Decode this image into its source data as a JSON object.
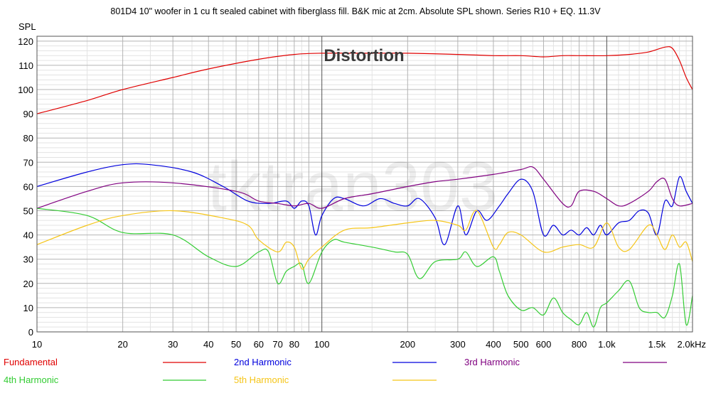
{
  "chart_data": {
    "type": "line",
    "title": "801D4 10\" woofer in 1 cu ft sealed cabinet with fiberglass fill. B&K mic at 2cm. Absolute SPL shown. Series R10 + EQ. 11.3V",
    "annotation": "Distortion",
    "watermark": "tktran303",
    "xlabel": "",
    "ylabel": "SPL",
    "x_scale": "log",
    "xlim": [
      10,
      2000
    ],
    "ylim": [
      0,
      122
    ],
    "grid": true,
    "legend_placement": "bottom",
    "y_ticks": [
      0,
      10,
      20,
      30,
      40,
      50,
      60,
      70,
      80,
      90,
      100,
      110,
      120
    ],
    "x_ticks": [
      {
        "value": 10,
        "label": "10"
      },
      {
        "value": 20,
        "label": "20"
      },
      {
        "value": 30,
        "label": "30"
      },
      {
        "value": 40,
        "label": "40"
      },
      {
        "value": 50,
        "label": "50"
      },
      {
        "value": 60,
        "label": "60"
      },
      {
        "value": 70,
        "label": "70"
      },
      {
        "value": 80,
        "label": "80"
      },
      {
        "value": 100,
        "label": "100"
      },
      {
        "value": 200,
        "label": "200"
      },
      {
        "value": 300,
        "label": "300"
      },
      {
        "value": 400,
        "label": "400"
      },
      {
        "value": 500,
        "label": "500"
      },
      {
        "value": 600,
        "label": "600"
      },
      {
        "value": 800,
        "label": "800"
      },
      {
        "value": 1000,
        "label": "1.0k"
      },
      {
        "value": 1500,
        "label": "1.5k"
      },
      {
        "value": 2000,
        "label": "2.0kHz"
      }
    ],
    "series": [
      {
        "name": "Fundamental",
        "color": "#e00000",
        "points": [
          [
            10,
            90
          ],
          [
            15,
            95.5
          ],
          [
            20,
            100
          ],
          [
            30,
            105
          ],
          [
            40,
            108.5
          ],
          [
            60,
            112.5
          ],
          [
            80,
            114.5
          ],
          [
            100,
            115
          ],
          [
            150,
            115
          ],
          [
            200,
            115
          ],
          [
            300,
            114.5
          ],
          [
            400,
            114
          ],
          [
            500,
            114
          ],
          [
            600,
            113.5
          ],
          [
            700,
            114
          ],
          [
            800,
            114
          ],
          [
            1000,
            114
          ],
          [
            1200,
            114.5
          ],
          [
            1400,
            115.5
          ],
          [
            1600,
            117.5
          ],
          [
            1700,
            117
          ],
          [
            1800,
            112
          ],
          [
            1900,
            105
          ],
          [
            2000,
            100
          ]
        ]
      },
      {
        "name": "2nd Harmonic",
        "color": "#0000dd",
        "points": [
          [
            10,
            60
          ],
          [
            15,
            66
          ],
          [
            20,
            69
          ],
          [
            25,
            69
          ],
          [
            35,
            66
          ],
          [
            45,
            60
          ],
          [
            55,
            54
          ],
          [
            65,
            53
          ],
          [
            75,
            54
          ],
          [
            80,
            51
          ],
          [
            85,
            54
          ],
          [
            90,
            52
          ],
          [
            95,
            40
          ],
          [
            100,
            48
          ],
          [
            110,
            55
          ],
          [
            120,
            55
          ],
          [
            140,
            52
          ],
          [
            160,
            55
          ],
          [
            180,
            53
          ],
          [
            200,
            52
          ],
          [
            220,
            55
          ],
          [
            250,
            47
          ],
          [
            270,
            36
          ],
          [
            300,
            52
          ],
          [
            320,
            40
          ],
          [
            350,
            50
          ],
          [
            380,
            46
          ],
          [
            420,
            52
          ],
          [
            450,
            57
          ],
          [
            500,
            63
          ],
          [
            550,
            58
          ],
          [
            600,
            40
          ],
          [
            650,
            44
          ],
          [
            700,
            40
          ],
          [
            750,
            42
          ],
          [
            800,
            40
          ],
          [
            850,
            43
          ],
          [
            900,
            40
          ],
          [
            950,
            44
          ],
          [
            1000,
            40
          ],
          [
            1100,
            45
          ],
          [
            1200,
            46
          ],
          [
            1300,
            50
          ],
          [
            1400,
            49
          ],
          [
            1500,
            40
          ],
          [
            1600,
            54
          ],
          [
            1700,
            52
          ],
          [
            1800,
            64
          ],
          [
            1900,
            58
          ],
          [
            2000,
            53
          ]
        ]
      },
      {
        "name": "3rd Harmonic",
        "color": "#800080",
        "points": [
          [
            10,
            51
          ],
          [
            15,
            58
          ],
          [
            20,
            61.5
          ],
          [
            30,
            61.5
          ],
          [
            50,
            58
          ],
          [
            60,
            54
          ],
          [
            70,
            53
          ],
          [
            80,
            52
          ],
          [
            90,
            53
          ],
          [
            100,
            51
          ],
          [
            120,
            55
          ],
          [
            150,
            57
          ],
          [
            200,
            60
          ],
          [
            250,
            62
          ],
          [
            300,
            63
          ],
          [
            400,
            65
          ],
          [
            500,
            67
          ],
          [
            550,
            68
          ],
          [
            600,
            63
          ],
          [
            700,
            53
          ],
          [
            750,
            52
          ],
          [
            800,
            58
          ],
          [
            900,
            58
          ],
          [
            1000,
            55
          ],
          [
            1100,
            52
          ],
          [
            1200,
            53
          ],
          [
            1400,
            58
          ],
          [
            1500,
            62
          ],
          [
            1600,
            63
          ],
          [
            1700,
            55
          ],
          [
            1800,
            52
          ],
          [
            2000,
            53
          ]
        ]
      },
      {
        "name": "4th Harmonic",
        "color": "#33cc33",
        "points": [
          [
            10,
            51
          ],
          [
            15,
            48
          ],
          [
            20,
            41
          ],
          [
            30,
            40
          ],
          [
            40,
            31
          ],
          [
            50,
            27
          ],
          [
            60,
            33
          ],
          [
            65,
            33
          ],
          [
            70,
            20
          ],
          [
            75,
            25
          ],
          [
            80,
            27
          ],
          [
            85,
            28
          ],
          [
            90,
            20
          ],
          [
            100,
            33
          ],
          [
            110,
            38
          ],
          [
            120,
            37
          ],
          [
            150,
            35
          ],
          [
            180,
            33
          ],
          [
            200,
            32
          ],
          [
            220,
            22
          ],
          [
            250,
            29
          ],
          [
            300,
            30
          ],
          [
            320,
            33
          ],
          [
            350,
            27
          ],
          [
            400,
            31
          ],
          [
            420,
            25
          ],
          [
            450,
            15
          ],
          [
            500,
            9
          ],
          [
            550,
            10
          ],
          [
            600,
            7
          ],
          [
            650,
            14
          ],
          [
            700,
            8
          ],
          [
            750,
            5
          ],
          [
            800,
            3
          ],
          [
            850,
            8
          ],
          [
            900,
            2
          ],
          [
            950,
            10
          ],
          [
            1000,
            12
          ],
          [
            1100,
            17
          ],
          [
            1200,
            21
          ],
          [
            1300,
            10
          ],
          [
            1400,
            8
          ],
          [
            1500,
            8
          ],
          [
            1600,
            6
          ],
          [
            1700,
            15
          ],
          [
            1800,
            28
          ],
          [
            1900,
            3
          ],
          [
            2000,
            15
          ]
        ]
      },
      {
        "name": "5th Harmonic",
        "color": "#f5c518",
        "points": [
          [
            10,
            36
          ],
          [
            15,
            44
          ],
          [
            20,
            48
          ],
          [
            30,
            50
          ],
          [
            45,
            47
          ],
          [
            55,
            44
          ],
          [
            60,
            38
          ],
          [
            70,
            33
          ],
          [
            75,
            37
          ],
          [
            80,
            35
          ],
          [
            85,
            26
          ],
          [
            90,
            30
          ],
          [
            100,
            35
          ],
          [
            120,
            42
          ],
          [
            150,
            43
          ],
          [
            200,
            45
          ],
          [
            250,
            46
          ],
          [
            300,
            44
          ],
          [
            320,
            42
          ],
          [
            350,
            50
          ],
          [
            400,
            35
          ],
          [
            420,
            36
          ],
          [
            450,
            41
          ],
          [
            500,
            40
          ],
          [
            600,
            33
          ],
          [
            700,
            35
          ],
          [
            800,
            36
          ],
          [
            900,
            35
          ],
          [
            1000,
            45
          ],
          [
            1100,
            35
          ],
          [
            1200,
            34
          ],
          [
            1400,
            44
          ],
          [
            1500,
            40
          ],
          [
            1600,
            34
          ],
          [
            1700,
            40
          ],
          [
            1800,
            35
          ],
          [
            1900,
            37
          ],
          [
            2000,
            29
          ]
        ]
      }
    ]
  }
}
